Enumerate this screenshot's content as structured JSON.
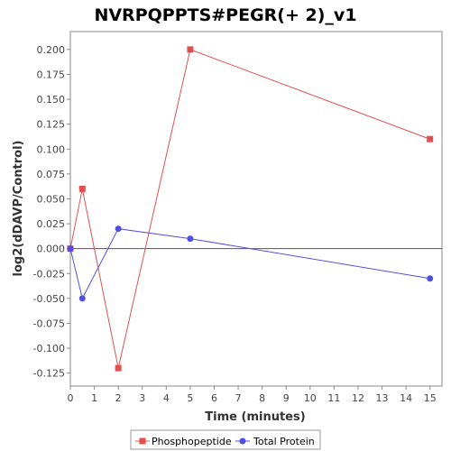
{
  "chart_data": {
    "type": "line",
    "title": "NVRPQPPTS#PEGR(+ 2)_v1",
    "xlabel": "Time (minutes)",
    "ylabel": "log2(dDAVP/Control)",
    "xlim": [
      0,
      15.5
    ],
    "ylim": [
      -0.138,
      0.218
    ],
    "x_ticks": [
      0,
      1,
      2,
      3,
      4,
      5,
      6,
      7,
      8,
      9,
      10,
      11,
      12,
      13,
      14,
      15
    ],
    "y_ticks": [
      -0.125,
      -0.1,
      -0.075,
      -0.05,
      -0.025,
      0.0,
      0.025,
      0.05,
      0.075,
      0.1,
      0.125,
      0.15,
      0.175,
      0.2
    ],
    "y_tick_labels": [
      "-0.125",
      "-0.100",
      "-0.075",
      "-0.050",
      "-0.025",
      "0.000",
      "0.025",
      "0.050",
      "0.075",
      "0.100",
      "0.125",
      "0.150",
      "0.175",
      "0.200"
    ],
    "zero_line": true,
    "grid": false,
    "legend_position": "bottom",
    "series": [
      {
        "name": "Phosphopeptide",
        "color": "#e05050",
        "marker": "square",
        "x": [
          0,
          0.5,
          2,
          5,
          15
        ],
        "y": [
          0.0,
          0.06,
          -0.12,
          0.2,
          0.11
        ]
      },
      {
        "name": "Total Protein",
        "color": "#5050e0",
        "marker": "circle",
        "x": [
          0,
          0.5,
          2,
          5,
          15
        ],
        "y": [
          0.0,
          -0.05,
          0.02,
          0.01,
          -0.03
        ]
      }
    ]
  }
}
